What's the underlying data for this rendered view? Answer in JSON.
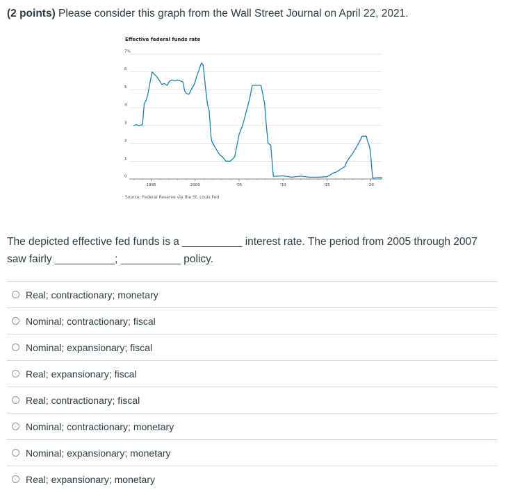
{
  "question": {
    "points": "(2 points)",
    "title_rest": " Please consider this graph from the Wall Street Journal on April 22, 2021.",
    "prompt_line1": "The depicted effective fed funds is a __________ interest rate. The period from 2005 through 2007",
    "prompt_line2": "saw fairly __________; __________ policy."
  },
  "answers": [
    "Real; contractionary; monetary",
    "Nominal; contractionary; fiscal",
    "Nominal; expansionary; fiscal",
    "Real; expansionary; fiscal",
    "Real; contractionary; fiscal",
    "Nominal; contractionary; monetary",
    "Nominal; expansionary; monetary",
    "Real; expansionary; monetary"
  ],
  "colors": {
    "line": "#1a7fb5",
    "grid": "#c9cdd1",
    "axis": "#555555"
  },
  "chart_data": {
    "type": "line",
    "title": "Effective federal funds rate",
    "source": "Source: Federal Reserve via the St. Louis Fed",
    "xlim": [
      1992.5,
      2021.3
    ],
    "ylim": [
      0,
      7
    ],
    "y_ticks": [
      "0",
      "1",
      "2",
      "3",
      "4",
      "5",
      "6",
      "7%"
    ],
    "x_ticks": [
      {
        "value": 1995,
        "label": "1995"
      },
      {
        "value": 2000,
        "label": "2000"
      },
      {
        "value": 2005,
        "label": "'05"
      },
      {
        "value": 2010,
        "label": "'10"
      },
      {
        "value": 2015,
        "label": "'15"
      },
      {
        "value": 2020,
        "label": "'20"
      }
    ],
    "grid": true,
    "series": [
      {
        "x": [
          1993.0,
          1993.3,
          1993.6,
          1994.0,
          1994.2,
          1994.4,
          1994.6,
          1994.9,
          1995.1,
          1995.3,
          1995.6,
          1995.9,
          1996.2,
          1996.5,
          1996.8,
          1997.1,
          1997.4,
          1997.7,
          1998.0,
          1998.3,
          1998.6,
          1998.8,
          1999.0,
          1999.3,
          1999.6,
          1999.9,
          2000.2,
          2000.4,
          2000.7,
          2000.9,
          2001.0,
          2001.2,
          2001.4,
          2001.6,
          2001.8,
          2001.9,
          2002.3,
          2002.8,
          2003.1,
          2003.5,
          2004.0,
          2004.5,
          2004.6,
          2004.8,
          2005.0,
          2005.4,
          2005.8,
          2006.2,
          2006.5,
          2007.0,
          2007.5,
          2007.7,
          2007.9,
          2008.1,
          2008.3,
          2008.6,
          2008.9,
          2009.0,
          2010.0,
          2011.0,
          2012.0,
          2013.0,
          2014.0,
          2015.0,
          2015.9,
          2016.0,
          2016.9,
          2017.0,
          2017.2,
          2017.5,
          2017.9,
          2018.2,
          2018.5,
          2018.8,
          2019.0,
          2019.5,
          2019.6,
          2019.8,
          2019.95,
          2020.2,
          2021.0,
          2021.3
        ],
        "y": [
          3.0,
          3.05,
          3.0,
          3.05,
          4.2,
          4.4,
          4.7,
          5.5,
          6.0,
          5.9,
          5.75,
          5.55,
          5.3,
          5.35,
          5.25,
          5.5,
          5.55,
          5.5,
          5.55,
          5.5,
          5.45,
          4.95,
          4.8,
          4.75,
          5.05,
          5.3,
          5.8,
          6.05,
          6.5,
          6.4,
          6.0,
          5.0,
          4.2,
          3.8,
          2.4,
          2.1,
          1.75,
          1.35,
          1.25,
          1.0,
          1.0,
          1.25,
          1.5,
          2.0,
          2.5,
          3.0,
          3.75,
          4.5,
          5.25,
          5.25,
          5.25,
          4.75,
          4.25,
          3.0,
          2.0,
          1.9,
          0.15,
          0.15,
          0.18,
          0.1,
          0.16,
          0.1,
          0.1,
          0.13,
          0.38,
          0.37,
          0.66,
          0.66,
          0.91,
          1.16,
          1.41,
          1.66,
          1.91,
          2.18,
          2.4,
          2.4,
          2.15,
          1.9,
          1.55,
          0.05,
          0.08,
          0.07
        ]
      }
    ]
  }
}
